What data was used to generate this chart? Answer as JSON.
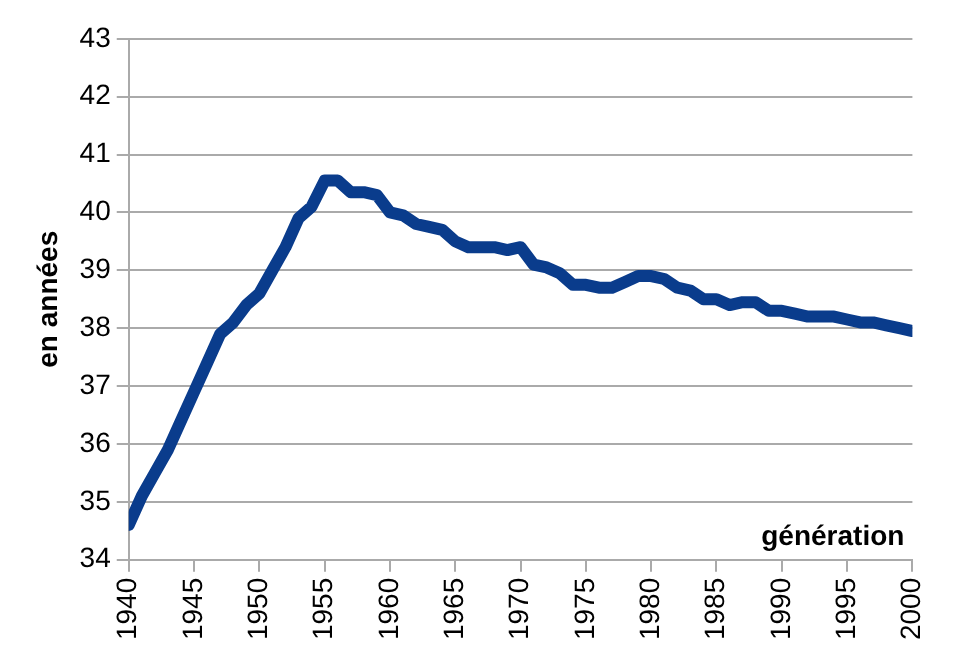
{
  "chart_data": {
    "type": "line",
    "xlabel": "génération",
    "ylabel": "en années",
    "x": [
      1940,
      1941,
      1942,
      1943,
      1944,
      1945,
      1946,
      1947,
      1948,
      1949,
      1950,
      1951,
      1952,
      1953,
      1954,
      1955,
      1956,
      1957,
      1958,
      1959,
      1960,
      1961,
      1962,
      1963,
      1964,
      1965,
      1966,
      1967,
      1968,
      1969,
      1970,
      1971,
      1972,
      1973,
      1974,
      1975,
      1976,
      1977,
      1978,
      1979,
      1980,
      1981,
      1982,
      1983,
      1984,
      1985,
      1986,
      1987,
      1988,
      1989,
      1990,
      1991,
      1992,
      1993,
      1994,
      1995,
      1996,
      1997,
      1998,
      1999,
      2000
    ],
    "series": [
      {
        "color": "#0a3c8c",
        "values": [
          34.6,
          35.1,
          35.5,
          35.9,
          36.4,
          36.9,
          37.4,
          37.9,
          38.1,
          38.4,
          38.6,
          39.0,
          39.4,
          39.9,
          40.1,
          40.55,
          40.55,
          40.35,
          40.35,
          40.3,
          40.0,
          39.95,
          39.8,
          39.75,
          39.7,
          39.5,
          39.4,
          39.4,
          39.4,
          39.35,
          39.4,
          39.1,
          39.05,
          38.95,
          38.75,
          38.75,
          38.7,
          38.7,
          38.8,
          38.9,
          38.9,
          38.85,
          38.7,
          38.65,
          38.5,
          38.5,
          38.4,
          38.45,
          38.45,
          38.3,
          38.3,
          38.25,
          38.2,
          38.2,
          38.2,
          38.15,
          38.1,
          38.1,
          38.05,
          38.0,
          37.95
        ]
      }
    ],
    "xlim": [
      1940,
      2000
    ],
    "xticks": [
      1940,
      1945,
      1950,
      1955,
      1960,
      1965,
      1970,
      1975,
      1980,
      1985,
      1990,
      1995,
      2000
    ],
    "ylim": [
      34,
      43
    ],
    "yticks": [
      34,
      35,
      36,
      37,
      38,
      39,
      40,
      41,
      42,
      43
    ],
    "grid": "y",
    "legend": false,
    "marker": "none",
    "line_style": "solid"
  }
}
